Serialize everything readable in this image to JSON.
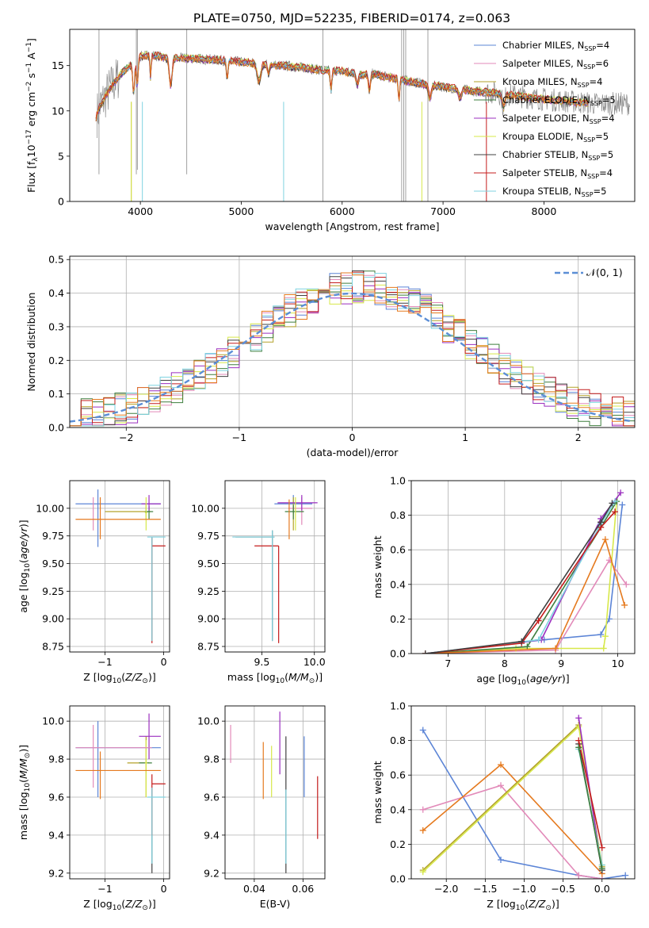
{
  "figure": {
    "title": "PLATE=0750, MJD=52235, FIBERID=0174, z=0.063"
  },
  "series": [
    {
      "name": "Chabrier MILES",
      "nssp": "4",
      "color": "#5b84d6"
    },
    {
      "name": "Salpeter MILES",
      "nssp": "6",
      "color": "#e28ab9"
    },
    {
      "name": "Kroupa MILES",
      "nssp": "4",
      "color": "#b3a22a"
    },
    {
      "name": "Chabrier ELODIE",
      "nssp": "5",
      "color": "#3f7f3f"
    },
    {
      "name": "Salpeter ELODIE",
      "nssp": "4",
      "color": "#9b2fbf"
    },
    {
      "name": "Kroupa ELODIE",
      "nssp": "5",
      "color": "#d7e84a"
    },
    {
      "name": "Chabrier STELIB",
      "nssp": "5",
      "color": "#404040"
    },
    {
      "name": "Salpeter STELIB",
      "nssp": "4",
      "color": "#c41c1c"
    },
    {
      "name": "Kroupa STELIB",
      "nssp": "5",
      "color": "#7fd3e0"
    }
  ],
  "colors": {
    "data": "#8a8a8a",
    "orange": "#e57a1f",
    "normal": "#5b8ed6"
  },
  "chart_data": [
    {
      "type": "line",
      "title": "PLATE=0750, MJD=52235, FIBERID=0174, z=0.063",
      "xlabel": "wavelength [Angstrom, rest frame]",
      "ylabel": "Flux [f_λ 10^-17 erg cm^-2 s^-1 A^-1]",
      "xlim": [
        3300,
        8900
      ],
      "ylim": [
        0,
        19
      ],
      "xticks": [
        4000,
        5000,
        6000,
        7000,
        8000
      ],
      "yticks": [
        0,
        5,
        10,
        15
      ],
      "continuum": {
        "x": [
          3550,
          3600,
          3650,
          3700,
          3800,
          3900,
          3950,
          4000,
          4100,
          4200,
          4300,
          4500,
          4800,
          5000,
          5200,
          5400,
          5600,
          5800,
          6000,
          6200,
          6300,
          6500,
          6700,
          6900,
          7100,
          7300,
          7500,
          7700,
          7900,
          8100,
          8300,
          8500
        ],
        "y": [
          9.0,
          10.5,
          11.5,
          12.5,
          14.0,
          15.0,
          15.5,
          16.0,
          16.2,
          16.0,
          15.8,
          15.8,
          15.6,
          15.4,
          15.2,
          15.0,
          14.8,
          14.5,
          14.4,
          14.0,
          14.1,
          13.6,
          13.2,
          12.8,
          12.5,
          12.2,
          12.0,
          11.7,
          11.4,
          11.2,
          11.0,
          10.8
        ]
      }
    },
    {
      "type": "bar",
      "xlabel": "(data-model)/error",
      "ylabel": "Normed distribution",
      "xlim": [
        -2.5,
        2.5
      ],
      "ylim": [
        0,
        0.51
      ],
      "xticks": [
        -2,
        -1,
        0,
        1,
        2
      ],
      "yticks": [
        0.0,
        0.1,
        0.2,
        0.3,
        0.4,
        0.5
      ],
      "legend": "$\\mathcal{N}(0, 1)$",
      "bin_width": 0.1
    },
    {
      "type": "scatter",
      "xlabel": "Z [log10(Z/Z⊙)]",
      "ylabel": "age  [log10(age/yr)]",
      "xlim": [
        -1.6,
        0.1
      ],
      "ylim": [
        8.7,
        10.25
      ],
      "xticks": [
        -1,
        0
      ],
      "yticks": [
        8.75,
        9.0,
        9.25,
        9.5,
        9.75,
        10.0
      ]
    },
    {
      "type": "scatter",
      "xlabel": "mass [log10(M/M⊙)]",
      "ylabel": "",
      "xlim": [
        9.15,
        10.1
      ],
      "ylim": [
        8.7,
        10.25
      ],
      "xticks": [
        9.5,
        10.0
      ],
      "yticks": [
        8.75,
        9.0,
        9.25,
        9.5,
        9.75,
        10.0
      ]
    },
    {
      "type": "line",
      "xlabel": "age  [log10(age/yr)]",
      "ylabel": "mass weight",
      "xlim": [
        6.35,
        10.3
      ],
      "ylim": [
        0,
        1.0
      ],
      "xticks": [
        7,
        8,
        9,
        10
      ],
      "yticks": [
        0.0,
        0.2,
        0.4,
        0.6,
        0.8,
        1.0
      ]
    },
    {
      "type": "scatter",
      "xlabel": "Z [log10(Z/Z⊙)]",
      "ylabel": "mass [log10(M/M⊙)]",
      "xlim": [
        -1.6,
        0.1
      ],
      "ylim": [
        9.17,
        10.08
      ],
      "xticks": [
        -1,
        0
      ],
      "yticks": [
        9.2,
        9.4,
        9.6,
        9.8,
        10.0
      ]
    },
    {
      "type": "scatter",
      "xlabel": "E(B-V)",
      "ylabel": "",
      "xlim": [
        0.028,
        0.069
      ],
      "ylim": [
        9.17,
        10.08
      ],
      "xticks": [
        0.04,
        0.06
      ],
      "yticks": [
        9.2,
        9.4,
        9.6,
        9.8,
        10.0
      ]
    },
    {
      "type": "line",
      "xlabel": "Z [log10(Z/Z⊙)]",
      "ylabel": "mass weight",
      "xlim": [
        -2.45,
        0.42
      ],
      "ylim": [
        0,
        1.0
      ],
      "xticks": [
        -2.0,
        -1.5,
        -1.0,
        -0.5,
        0.0
      ],
      "yticks": [
        0.0,
        0.2,
        0.4,
        0.6,
        0.8,
        1.0
      ]
    }
  ],
  "text": {
    "xlabel_flux": "wavelength [Angstrom, rest frame]",
    "xlabel_resid": "(data-model)/error",
    "ylabel_resid": "Normed distribution",
    "ylabel_mw": "mass weight",
    "xlabel_ebv": "E(B-V)"
  }
}
